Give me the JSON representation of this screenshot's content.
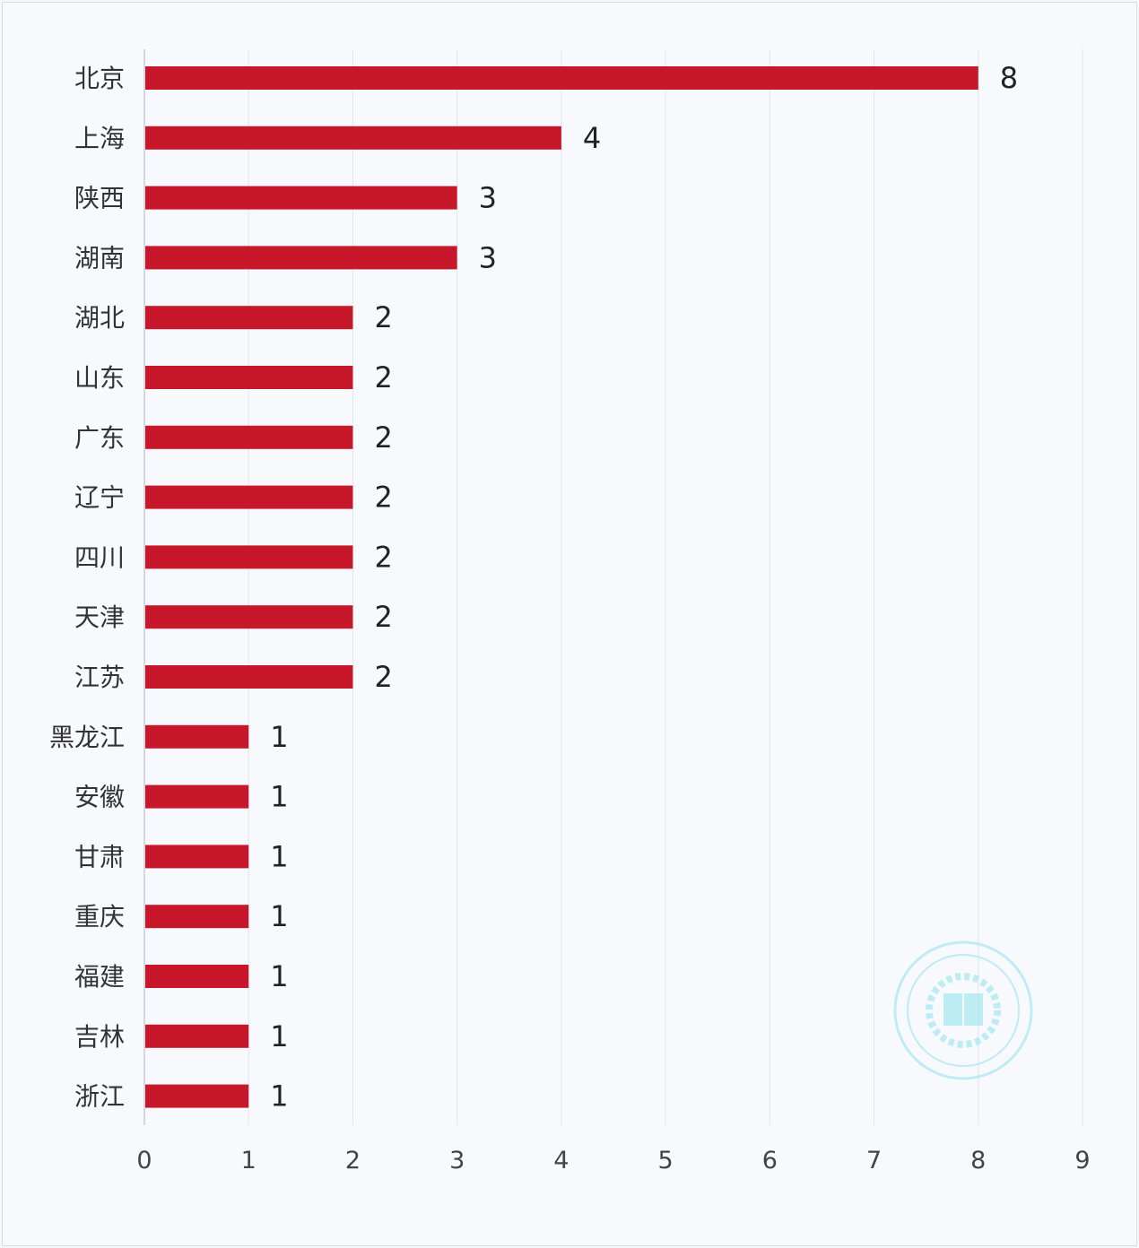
{
  "chart_data": {
    "type": "bar",
    "orientation": "horizontal",
    "categories": [
      "北京",
      "上海",
      "陕西",
      "湖南",
      "湖北",
      "山东",
      "广东",
      "辽宁",
      "四川",
      "天津",
      "江苏",
      "黑龙江",
      "安徽",
      "甘肃",
      "重庆",
      "福建",
      "吉林",
      "浙江"
    ],
    "values": [
      8,
      4,
      3,
      3,
      2,
      2,
      2,
      2,
      2,
      2,
      2,
      1,
      1,
      1,
      1,
      1,
      1,
      1
    ],
    "xlim": [
      0,
      9
    ],
    "x_ticks": [
      0,
      1,
      2,
      3,
      4,
      5,
      6,
      7,
      8,
      9
    ],
    "grid": "vertical",
    "data_labels": true,
    "bar_color": "#c8172a",
    "grid_color": "#e2e4ea"
  },
  "watermark": {
    "color": "#8fe3ee",
    "icon": "seal-watermark-icon"
  }
}
